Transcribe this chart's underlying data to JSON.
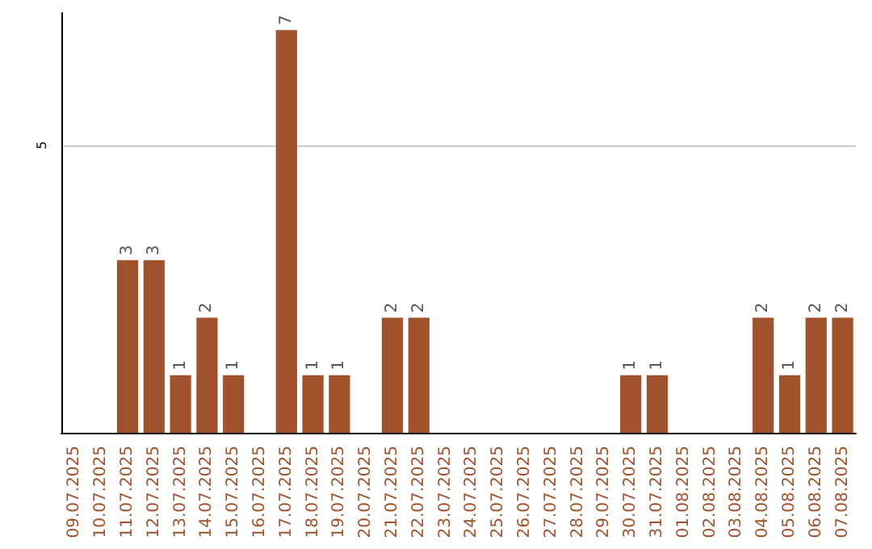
{
  "chart_data": {
    "type": "bar",
    "categories": [
      "09.07.2025",
      "10.07.2025",
      "11.07.2025",
      "12.07.2025",
      "13.07.2025",
      "14.07.2025",
      "15.07.2025",
      "16.07.2025",
      "17.07.2025",
      "18.07.2025",
      "19.07.2025",
      "20.07.2025",
      "21.07.2025",
      "22.07.2025",
      "23.07.2025",
      "24.07.2025",
      "25.07.2025",
      "26.07.2025",
      "27.07.2025",
      "28.07.2025",
      "29.07.2025",
      "30.07.2025",
      "31.07.2025",
      "01.08.2025",
      "02.08.2025",
      "03.08.2025",
      "04.08.2025",
      "05.08.2025",
      "06.08.2025",
      "07.08.2025"
    ],
    "values": [
      0,
      0,
      3,
      3,
      1,
      2,
      1,
      0,
      7,
      1,
      1,
      0,
      2,
      2,
      0,
      0,
      0,
      0,
      0,
      0,
      0,
      1,
      1,
      0,
      0,
      0,
      2,
      1,
      2,
      2
    ],
    "value_labels": [
      null,
      null,
      "3",
      "3",
      "1",
      "2",
      "1",
      null,
      "7",
      "1",
      "1",
      null,
      "2",
      "2",
      null,
      null,
      null,
      null,
      null,
      null,
      null,
      "1",
      "1",
      null,
      null,
      null,
      "2",
      "1",
      "2",
      "2"
    ],
    "color": "#a0522d",
    "ylim": [
      0,
      7.3
    ],
    "yticks": [
      5
    ],
    "grid": "y"
  }
}
